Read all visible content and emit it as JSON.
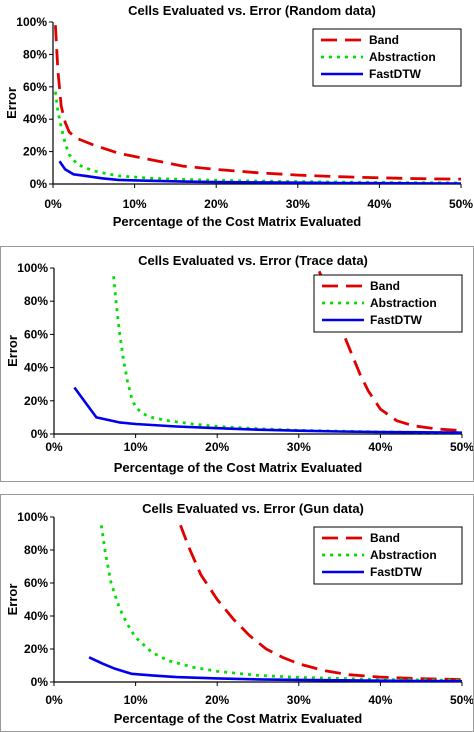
{
  "chart_data": [
    {
      "type": "line",
      "title": "Cells Evaluated vs. Error (Random data)",
      "xlabel": "Percentage of the Cost Matrix Evaluated",
      "ylabel": "Error",
      "xlim": [
        0,
        50
      ],
      "ylim": [
        0,
        100
      ],
      "xticks": [
        "0%",
        "10%",
        "20%",
        "30%",
        "40%",
        "50%"
      ],
      "yticks": [
        "0%",
        "20%",
        "40%",
        "60%",
        "80%",
        "100%"
      ],
      "legend": "top-right",
      "series": [
        {
          "name": "Band",
          "color": "#e00000",
          "style": "long-dash",
          "x": [
            0.3,
            0.6,
            1,
            1.5,
            2,
            3,
            5,
            8,
            12,
            16,
            20,
            25,
            30,
            35,
            40,
            45,
            50
          ],
          "y": [
            98,
            70,
            48,
            38,
            32,
            28,
            24,
            19,
            15,
            11,
            9,
            7,
            5.5,
            4.5,
            3.8,
            3.3,
            3
          ]
        },
        {
          "name": "Abstraction",
          "color": "#00e000",
          "style": "dotted",
          "x": [
            0.3,
            0.6,
            1,
            1.5,
            2,
            3,
            5,
            8,
            12,
            16,
            20,
            25,
            30,
            35,
            40,
            45,
            50
          ],
          "y": [
            57,
            45,
            35,
            25,
            18,
            12,
            8,
            5,
            3.5,
            2.8,
            2.3,
            1.8,
            1.5,
            1.2,
            1,
            0.8,
            0.7
          ]
        },
        {
          "name": "FastDTW",
          "color": "#0000ee",
          "style": "solid",
          "x": [
            0.8,
            1.5,
            2.5,
            4,
            6,
            8,
            12,
            16,
            20,
            25,
            30,
            35,
            40,
            45,
            50
          ],
          "y": [
            14,
            9,
            6,
            5,
            3.5,
            2.5,
            2,
            1.5,
            1.2,
            1,
            0.8,
            0.6,
            0.5,
            0.4,
            0.3
          ]
        }
      ]
    },
    {
      "type": "line",
      "title": "Cells Evaluated vs. Error (Trace data)",
      "xlabel": "Percentage of the Cost Matrix Evaluated",
      "ylabel": "Error",
      "xlim": [
        0,
        50
      ],
      "ylim": [
        0,
        100
      ],
      "xticks": [
        "0%",
        "10%",
        "20%",
        "30%",
        "40%",
        "50%"
      ],
      "yticks": [
        "0%",
        "20%",
        "40%",
        "60%",
        "80%",
        "100%"
      ],
      "legend": "top-right",
      "series": [
        {
          "name": "Band",
          "color": "#e00000",
          "style": "long-dash",
          "x": [
            32.5,
            33.5,
            34.5,
            35.5,
            36.5,
            37.5,
            38.5,
            40,
            42,
            44,
            47,
            50
          ],
          "y": [
            98,
            86,
            72,
            60,
            48,
            36,
            26,
            15,
            8,
            5,
            3,
            2
          ]
        },
        {
          "name": "Abstraction",
          "color": "#00e000",
          "style": "dotted",
          "x": [
            7.3,
            7.6,
            8,
            8.5,
            9,
            9.5,
            10,
            11,
            12,
            14,
            17,
            20,
            25,
            30,
            40,
            50
          ],
          "y": [
            95,
            80,
            62,
            45,
            32,
            22,
            16,
            12,
            10,
            8,
            6,
            4.5,
            3.2,
            2.2,
            1.2,
            0.8
          ]
        },
        {
          "name": "FastDTW",
          "color": "#0000ee",
          "style": "solid",
          "x": [
            2.5,
            4,
            5.2,
            8,
            10,
            15,
            20,
            25,
            30,
            35,
            40,
            45,
            50
          ],
          "y": [
            28,
            18,
            10,
            7,
            6,
            4.5,
            3.5,
            2.6,
            2,
            1.5,
            1.2,
            1,
            0.8
          ]
        }
      ]
    },
    {
      "type": "line",
      "title": "Cells Evaluated vs. Error (Gun data)",
      "xlabel": "Percentage of the Cost Matrix Evaluated",
      "ylabel": "Error",
      "xlim": [
        0,
        50
      ],
      "ylim": [
        0,
        100
      ],
      "xticks": [
        "0%",
        "10%",
        "20%",
        "30%",
        "40%",
        "50%"
      ],
      "yticks": [
        "0%",
        "20%",
        "40%",
        "60%",
        "80%",
        "100%"
      ],
      "legend": "top-right",
      "series": [
        {
          "name": "Band",
          "color": "#e00000",
          "style": "long-dash",
          "x": [
            15.5,
            16.5,
            18,
            20,
            22,
            24,
            26,
            28,
            30,
            33,
            36,
            40,
            45,
            50
          ],
          "y": [
            95,
            82,
            65,
            50,
            38,
            28,
            20,
            15,
            11,
            7,
            4.5,
            3,
            2,
            1.5
          ]
        },
        {
          "name": "Abstraction",
          "color": "#00e000",
          "style": "dotted",
          "x": [
            5.8,
            6.3,
            7,
            8,
            9,
            10,
            12,
            14,
            17,
            20,
            25,
            30,
            40,
            50
          ],
          "y": [
            95,
            78,
            60,
            45,
            35,
            27,
            18,
            13,
            9,
            6.5,
            4,
            2.8,
            1.5,
            1
          ]
        },
        {
          "name": "FastDTW",
          "color": "#0000ee",
          "style": "solid",
          "x": [
            4.3,
            6,
            7.5,
            9.5,
            12,
            15,
            20,
            25,
            30,
            35,
            40,
            45,
            50
          ],
          "y": [
            15,
            11,
            8,
            5,
            4,
            3,
            2.2,
            1.6,
            1.3,
            1,
            0.8,
            0.6,
            0.5
          ]
        }
      ]
    }
  ]
}
